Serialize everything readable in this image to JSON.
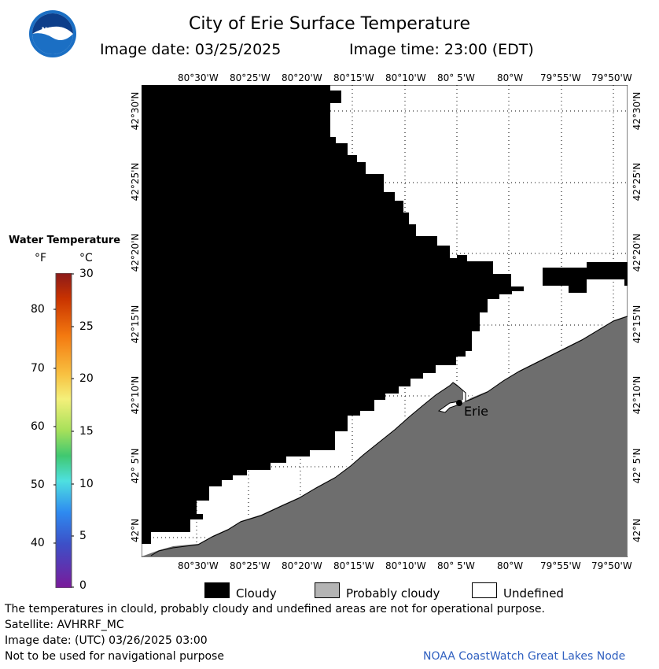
{
  "header": {
    "title": "City of Erie Surface Temperature",
    "image_date": "Image date: 03/25/2025",
    "image_time": "Image time: 23:00 (EDT)",
    "logo_text": "NOAA"
  },
  "map": {
    "lon_labels": [
      "80°30'W",
      "80°25'W",
      "80°20'W",
      "80°15'W",
      "80°10'W",
      "80° 5'W",
      "80°W",
      "79°55'W",
      "79°50'W"
    ],
    "lat_labels": [
      "42°30'N",
      "42°25'N",
      "42°20'N",
      "42°15'N",
      "42°10'N",
      "42° 5'N",
      "42°N"
    ],
    "city_label": "Erie",
    "colors": {
      "cloudy": "#000000",
      "land": "#6e6e6e",
      "undefined": "#ffffff",
      "grid": "#000000"
    }
  },
  "colorbar": {
    "title": "Water Temperature",
    "unit_f": "°F",
    "unit_c": "°C",
    "f_ticks": [
      "80",
      "70",
      "60",
      "50",
      "40"
    ],
    "c_ticks": [
      "30",
      "25",
      "20",
      "15",
      "10",
      "5",
      "0"
    ]
  },
  "key": {
    "cloudy": "Cloudy",
    "probably_cloudy": "Probably cloudy",
    "undefined": "Undefined",
    "colors": {
      "cloudy": "#000000",
      "probably_cloudy": "#b4b4b4",
      "undefined": "#ffffff"
    }
  },
  "footer": {
    "disclaimer": "The temperatures in clould, probably cloudy and undefined areas are not for operational purpose.",
    "satellite": "Satellite: AVHRRF_MC",
    "utc_date": "Image date: (UTC) 03/26/2025  03:00",
    "nav_note": "Not to be used for navigational purpose",
    "credit": "NOAA CoastWatch Great Lakes Node"
  }
}
